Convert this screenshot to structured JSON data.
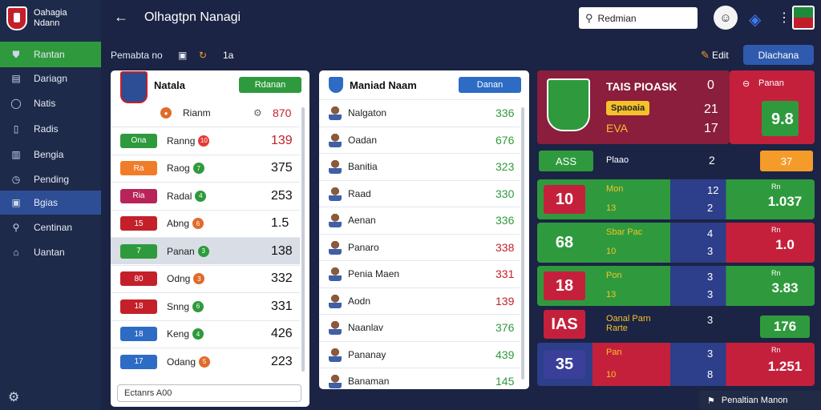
{
  "app": {
    "brand_line1": "Oahagia",
    "brand_line2": "Ndann",
    "title": "Olhagtpn Nanagi"
  },
  "sidebar": {
    "items": [
      {
        "label": "Rantan",
        "icon": "shield-icon"
      },
      {
        "label": "Dariagn",
        "icon": "chart-icon"
      },
      {
        "label": "Natis",
        "icon": "ball-icon"
      },
      {
        "label": "Radis",
        "icon": "document-icon"
      },
      {
        "label": "Bengia",
        "icon": "building-icon"
      },
      {
        "label": "Pending",
        "icon": "clock-icon"
      },
      {
        "label": "Bgias",
        "icon": "lock-icon"
      },
      {
        "label": "Centinan",
        "icon": "search-icon"
      },
      {
        "label": "Uantan",
        "icon": "home-icon"
      }
    ]
  },
  "topbar": {
    "search_text": "Redmian"
  },
  "subbar": {
    "label": "Pemabta no",
    "count": "1a",
    "edit_label": "Edit",
    "button": "Dlachana"
  },
  "left_panel": {
    "title": "Natala",
    "button": "Rdanan",
    "header_row": {
      "label": "Rianm",
      "value": "870"
    },
    "rows": [
      {
        "tag": "Ona",
        "tag_color": "#2f9a3d",
        "name": "Ranng",
        "dot": "#e53935",
        "dot_text": "10",
        "value": "139",
        "value_color": "#c4202a"
      },
      {
        "tag": "Ra",
        "tag_color": "#f07c2a",
        "name": "Raog",
        "dot": "#2f9a3d",
        "dot_text": "7",
        "value": "375",
        "value_color": "#111"
      },
      {
        "tag": "Ria",
        "tag_color": "#b8245a",
        "name": "Radal",
        "dot": "#2f9a3d",
        "dot_text": "4",
        "value": "253",
        "value_color": "#111"
      },
      {
        "tag": "15",
        "tag_color": "#c4202a",
        "name": "Abng",
        "dot": "#e06b2a",
        "dot_text": "6",
        "value": "1.5",
        "value_color": "#111"
      },
      {
        "tag": "7",
        "tag_color": "#2f9a3d",
        "name": "Panan",
        "dot": "#2f9a3d",
        "dot_text": "3",
        "value": "138",
        "value_color": "#111"
      },
      {
        "tag": "80",
        "tag_color": "#c4202a",
        "name": "Odng",
        "dot": "#e06b2a",
        "dot_text": "3",
        "value": "332",
        "value_color": "#111"
      },
      {
        "tag": "18",
        "tag_color": "#c4202a",
        "name": "Snng",
        "dot": "#2f9a3d",
        "dot_text": "6",
        "value": "331",
        "value_color": "#111"
      },
      {
        "tag": "18",
        "tag_color": "#2d6cc4",
        "name": "Keng",
        "dot": "#2f9a3d",
        "dot_text": "4",
        "value": "426",
        "value_color": "#111"
      },
      {
        "tag": "17",
        "tag_color": "#2d6cc4",
        "name": "Odang",
        "dot": "#e06b2a",
        "dot_text": "5",
        "value": "223",
        "value_color": "#111"
      }
    ],
    "input": "Ectanrs A00"
  },
  "mid_panel": {
    "title": "Maniad Naam",
    "button": "Danan",
    "rows": [
      {
        "name": "Nalgaton",
        "value": "336",
        "value_color": "#2f9a3d"
      },
      {
        "name": "Oadan",
        "value": "676",
        "value_color": "#2f9a3d"
      },
      {
        "name": "Banitia",
        "value": "323",
        "value_color": "#2f9a3d"
      },
      {
        "name": "Raad",
        "value": "330",
        "value_color": "#2f9a3d"
      },
      {
        "name": "Aenan",
        "value": "336",
        "value_color": "#2f9a3d"
      },
      {
        "name": "Panaro",
        "value": "338",
        "value_color": "#c4202a"
      },
      {
        "name": "Penia Maen",
        "value": "331",
        "value_color": "#c4202a"
      },
      {
        "name": "Aodn",
        "value": "139",
        "value_color": "#c4202a"
      },
      {
        "name": "Naanlav",
        "value": "376",
        "value_color": "#2f9a3d"
      },
      {
        "name": "Pananay",
        "value": "439",
        "value_color": "#2f9a3d"
      },
      {
        "name": "Banaman",
        "value": "145",
        "value_color": "#2f9a3d"
      }
    ]
  },
  "right_panel": {
    "player_name": "TAIS PIOASK",
    "player_tag": "Spaoaia",
    "player_sub": "EVA",
    "stats": [
      "0",
      "21",
      "17"
    ],
    "action_label": "Panan",
    "big_value": "9.8",
    "strip": {
      "left": "ASS",
      "label": "Plaao",
      "mid": "2",
      "right": "37"
    },
    "matches": [
      {
        "left": "10",
        "label": "Mon",
        "sub": "13",
        "a": "12",
        "b": "2",
        "r_label": "Rn",
        "r_val": "1.037"
      },
      {
        "left": "68",
        "label": "Sbar Pac",
        "sub": "10",
        "a": "4",
        "b": "3",
        "r_label": "Rn",
        "r_val": "1.0"
      },
      {
        "left": "18",
        "label": "Pon",
        "sub": "13",
        "a": "3",
        "b": "3",
        "r_label": "Rn",
        "r_val": "3.83"
      },
      {
        "left": "IAS",
        "label": "Oanal Parn",
        "sub": "Rarte",
        "a": "3",
        "b": "",
        "r_label": "",
        "r_val": "176"
      },
      {
        "left": "35",
        "label": "Pan",
        "sub": "10",
        "a": "3",
        "b": "8",
        "r_label": "Rn",
        "r_val": "1.251"
      }
    ],
    "footer": "Penaltian Manon"
  }
}
